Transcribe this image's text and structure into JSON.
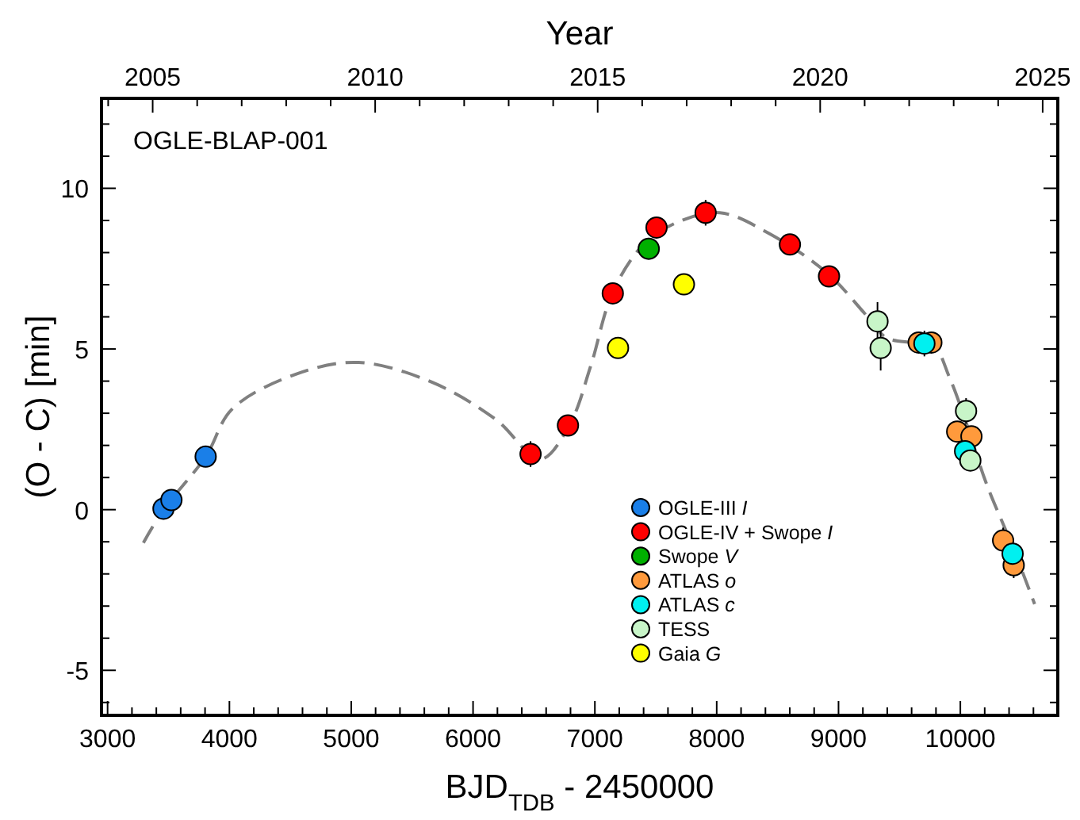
{
  "chart_data": {
    "type": "scatter",
    "xlabel": "BJD$_{TDB}$ - 2450000",
    "ylabel": "(O - C) [min]",
    "x2label": "Year",
    "annotations": [
      "OGLE-BLAP-001"
    ],
    "xlim": [
      2950,
      10800
    ],
    "ylim": [
      -6.4,
      12.8
    ],
    "x2lim": [
      2003.85,
      2025.34
    ],
    "xticks": [
      3000,
      {
        "value": 3200,
        "label": null
      },
      {
        "value": 3400,
        "label": null
      },
      {
        "value": 3600,
        "label": null
      },
      {
        "value": 3800,
        "label": null
      },
      4000,
      {
        "value": 4200,
        "label": null
      },
      {
        "value": 4400,
        "label": null
      },
      {
        "value": 4600,
        "label": null
      },
      {
        "value": 4800,
        "label": null
      },
      5000,
      {
        "value": 5200,
        "label": null
      },
      {
        "value": 5400,
        "label": null
      },
      {
        "value": 5600,
        "label": null
      },
      {
        "value": 5800,
        "label": null
      },
      6000,
      {
        "value": 6200,
        "label": null
      },
      {
        "value": 6400,
        "label": null
      },
      {
        "value": 6600,
        "label": null
      },
      {
        "value": 6800,
        "label": null
      },
      7000,
      {
        "value": 7200,
        "label": null
      },
      {
        "value": 7400,
        "label": null
      },
      {
        "value": 7600,
        "label": null
      },
      {
        "value": 7800,
        "label": null
      },
      8000,
      {
        "value": 8200,
        "label": null
      },
      {
        "value": 8400,
        "label": null
      },
      {
        "value": 8600,
        "label": null
      },
      {
        "value": 8800,
        "label": null
      },
      9000,
      {
        "value": 9200,
        "label": null
      },
      {
        "value": 9400,
        "label": null
      },
      {
        "value": 9600,
        "label": null
      },
      {
        "value": 9800,
        "label": null
      },
      10000,
      {
        "value": 10200,
        "label": null
      },
      {
        "value": 10400,
        "label": null
      },
      {
        "value": 10600,
        "label": null
      }
    ],
    "yticks": [
      {
        "value": -6,
        "label": null
      },
      -5,
      {
        "value": -4,
        "label": null
      },
      {
        "value": -3,
        "label": null
      },
      {
        "value": -2,
        "label": null
      },
      {
        "value": -1,
        "label": null
      },
      0,
      {
        "value": 1,
        "label": null
      },
      {
        "value": 2,
        "label": null
      },
      {
        "value": 3,
        "label": null
      },
      {
        "value": 4,
        "label": null
      },
      5,
      {
        "value": 6,
        "label": null
      },
      {
        "value": 7,
        "label": null
      },
      {
        "value": 8,
        "label": null
      },
      {
        "value": 9,
        "label": null
      },
      10,
      {
        "value": 11,
        "label": null
      },
      {
        "value": 12,
        "label": null
      }
    ],
    "x2ticks": [
      {
        "value": 2004,
        "label": null
      },
      2005,
      {
        "value": 2006,
        "label": null
      },
      {
        "value": 2007,
        "label": null
      },
      {
        "value": 2008,
        "label": null
      },
      {
        "value": 2009,
        "label": null
      },
      2010,
      {
        "value": 2011,
        "label": null
      },
      {
        "value": 2012,
        "label": null
      },
      {
        "value": 2013,
        "label": null
      },
      {
        "value": 2014,
        "label": null
      },
      2015,
      {
        "value": 2016,
        "label": null
      },
      {
        "value": 2017,
        "label": null
      },
      {
        "value": 2018,
        "label": null
      },
      {
        "value": 2019,
        "label": null
      },
      2020,
      {
        "value": 2021,
        "label": null
      },
      {
        "value": 2022,
        "label": null
      },
      {
        "value": 2023,
        "label": null
      },
      {
        "value": 2024,
        "label": null
      },
      2025
    ],
    "grid": false,
    "legend": "bottom",
    "marker": "circle",
    "series": [
      {
        "type": "line",
        "color": "#808080",
        "line_style": "dashed",
        "marker": "none",
        "x": [
          3294,
          3459,
          3805,
          4022,
          4541,
          5060,
          5666,
          6186,
          6554,
          6792,
          6965,
          7147,
          7398,
          7658,
          8026,
          8437,
          8913,
          9216,
          9390,
          9606,
          9779,
          9909,
          10039,
          10212,
          10429,
          10610
        ],
        "values": [
          -1.03,
          0.0,
          1.65,
          3.13,
          4.21,
          4.58,
          3.96,
          2.81,
          1.57,
          2.64,
          4.46,
          6.77,
          8.25,
          8.91,
          9.24,
          8.58,
          7.34,
          6.1,
          5.36,
          5.2,
          5.12,
          4.13,
          2.81,
          0.83,
          -1.15,
          -2.94
        ]
      },
      {
        "name": "OGLE-III I",
        "color": "#1a7fe8",
        "x": [
          3459,
          3524,
          3805
        ],
        "values": [
          0.03,
          0.3,
          1.65
        ]
      },
      {
        "name": "OGLE-IV + Swope I",
        "color": "#ff0000",
        "x": [
          6472,
          6779,
          7147,
          7506,
          7909,
          8601,
          8922
        ],
        "values": [
          1.73,
          2.62,
          6.73,
          8.78,
          9.24,
          8.25,
          7.26
        ],
        "errors": [
          0.4,
          0.2,
          0.3,
          0.2,
          0.4,
          0.3,
          0.2
        ]
      },
      {
        "name": "Swope V",
        "color": "#00b000",
        "x": [
          7442
        ],
        "values": [
          8.12
        ]
      },
      {
        "name": "ATLAS o",
        "color": "#ff9a3c",
        "x": [
          9658,
          9762,
          9974,
          10091,
          10351,
          10438
        ],
        "values": [
          5.2,
          5.2,
          2.43,
          2.28,
          -0.96,
          -1.73
        ],
        "errors": [
          0.3,
          0.3,
          0.3,
          0.3,
          0.4,
          0.4
        ]
      },
      {
        "name": "ATLAS c",
        "color": "#00f0f0",
        "x": [
          9705,
          10039,
          10429
        ],
        "values": [
          5.17,
          1.82,
          -1.37
        ],
        "errors": [
          0.4,
          0.2,
          0.3
        ]
      },
      {
        "name": "TESS",
        "color": "#c8f5c8",
        "x": [
          9320,
          9346,
          10047,
          10082
        ],
        "values": [
          5.86,
          5.03,
          3.07,
          1.53
        ],
        "errors": [
          0.6,
          0.7,
          0.4,
          0.3
        ]
      },
      {
        "name": "Gaia G",
        "color": "#ffff00",
        "x": [
          7190,
          7731
        ],
        "values": [
          5.03,
          7.01
        ]
      }
    ]
  }
}
